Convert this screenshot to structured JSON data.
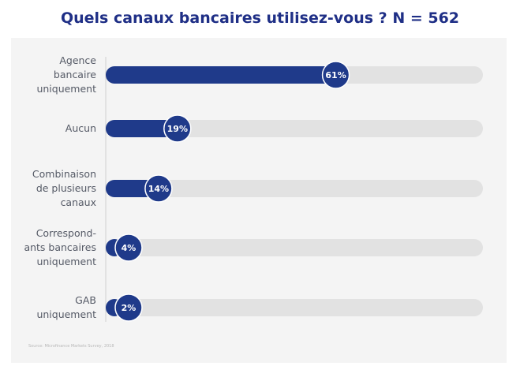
{
  "title": "Quels canaux bancaires utilisez-vous ? N = 562",
  "source": "Source: Microfinance Markets Survey, 2018",
  "colors": {
    "bar": "#1f3a8a",
    "track": "#e2e2e2",
    "panel": "#f4f4f4",
    "title": "#1f2f86"
  },
  "chart_data": {
    "type": "bar",
    "orientation": "horizontal",
    "categories": [
      [
        "Agence",
        "bancaire",
        "uniquement"
      ],
      [
        "Aucun"
      ],
      [
        "Combinaison",
        "de plusieurs",
        "canaux"
      ],
      [
        "Correspond-",
        "ants bancaires",
        "uniquement"
      ],
      [
        "GAB",
        "uniquement"
      ]
    ],
    "values": [
      61,
      19,
      14,
      4,
      2
    ],
    "value_labels": [
      "61%",
      "19%",
      "14%",
      "4%",
      "2%"
    ],
    "unit": "%",
    "xlim": [
      0,
      100
    ],
    "grid": false,
    "legend": "none"
  }
}
